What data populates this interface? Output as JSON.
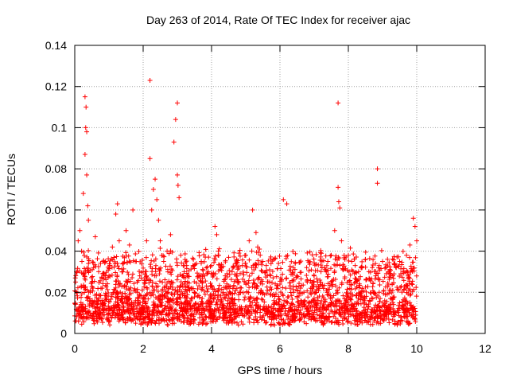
{
  "chart_data": {
    "type": "scatter",
    "title": "Day 263 of 2014, Rate Of TEC Index for receiver ajac",
    "xlabel": "GPS time / hours",
    "ylabel": "ROTI / TECUs",
    "xlim": [
      0,
      12
    ],
    "ylim": [
      0,
      0.14
    ],
    "x_ticks": [
      0,
      2,
      4,
      6,
      8,
      10,
      12
    ],
    "x_tick_labels": [
      "0",
      "2",
      "4",
      "6",
      "8",
      "10",
      "12"
    ],
    "y_ticks": [
      0,
      0.02,
      0.04,
      0.06,
      0.08,
      0.1,
      0.12,
      0.14
    ],
    "y_tick_labels": [
      "0",
      "0.02",
      "0.04",
      "0.06",
      "0.08",
      "0.1",
      "0.12",
      "0.14"
    ],
    "grid": true,
    "marker": "+",
    "color": "#ff0000",
    "series": [
      {
        "name": "ROTI",
        "x": [
          0.05,
          0.1,
          0.15,
          0.2,
          0.25,
          0.3,
          0.3,
          0.32,
          0.33,
          0.35,
          0.35,
          0.38,
          0.4,
          0.4,
          0.45,
          0.5,
          0.55,
          0.6,
          0.7,
          0.8,
          0.9,
          1.0,
          1.1,
          1.2,
          1.25,
          1.3,
          1.4,
          1.5,
          1.6,
          1.7,
          1.8,
          1.9,
          2.0,
          2.1,
          2.2,
          2.2,
          2.25,
          2.3,
          2.35,
          2.4,
          2.45,
          2.5,
          2.6,
          2.7,
          2.8,
          2.9,
          2.95,
          3.0,
          3.0,
          3.02,
          3.05,
          3.1,
          3.2,
          3.3,
          3.4,
          3.5,
          3.6,
          3.7,
          3.8,
          3.9,
          4.0,
          4.1,
          4.15,
          4.2,
          4.3,
          4.4,
          4.5,
          4.6,
          4.7,
          4.8,
          4.9,
          5.0,
          5.1,
          5.2,
          5.3,
          5.35,
          5.4,
          5.5,
          5.6,
          5.7,
          5.8,
          5.9,
          6.0,
          6.1,
          6.2,
          6.3,
          6.4,
          6.5,
          6.6,
          6.7,
          6.8,
          6.9,
          7.0,
          7.1,
          7.2,
          7.3,
          7.4,
          7.5,
          7.6,
          7.7,
          7.7,
          7.72,
          7.75,
          7.8,
          7.9,
          8.0,
          8.1,
          8.2,
          8.3,
          8.4,
          8.5,
          8.6,
          8.7,
          8.8,
          8.85,
          8.85,
          8.9,
          9.0,
          9.1,
          9.2,
          9.3,
          9.4,
          9.5,
          9.6,
          9.7,
          9.8,
          9.9,
          9.95,
          10.0
        ],
        "y": [
          0.03,
          0.045,
          0.05,
          0.04,
          0.068,
          0.087,
          0.115,
          0.1,
          0.11,
          0.098,
          0.077,
          0.062,
          0.055,
          0.034,
          0.02,
          0.025,
          0.032,
          0.047,
          0.03,
          0.022,
          0.035,
          0.028,
          0.042,
          0.058,
          0.063,
          0.045,
          0.03,
          0.05,
          0.043,
          0.06,
          0.035,
          0.028,
          0.03,
          0.045,
          0.123,
          0.085,
          0.06,
          0.07,
          0.075,
          0.065,
          0.055,
          0.045,
          0.035,
          0.04,
          0.048,
          0.093,
          0.104,
          0.112,
          0.077,
          0.072,
          0.066,
          0.038,
          0.03,
          0.025,
          0.022,
          0.02,
          0.027,
          0.035,
          0.028,
          0.03,
          0.033,
          0.052,
          0.048,
          0.04,
          0.032,
          0.028,
          0.037,
          0.03,
          0.034,
          0.039,
          0.033,
          0.038,
          0.045,
          0.06,
          0.049,
          0.042,
          0.041,
          0.035,
          0.033,
          0.025,
          0.027,
          0.022,
          0.024,
          0.065,
          0.063,
          0.022,
          0.02,
          0.018,
          0.022,
          0.02,
          0.025,
          0.022,
          0.028,
          0.025,
          0.03,
          0.032,
          0.035,
          0.038,
          0.05,
          0.112,
          0.071,
          0.064,
          0.061,
          0.045,
          0.036,
          0.038,
          0.035,
          0.033,
          0.03,
          0.032,
          0.036,
          0.03,
          0.032,
          0.028,
          0.08,
          0.073,
          0.033,
          0.035,
          0.032,
          0.03,
          0.028,
          0.032,
          0.035,
          0.03,
          0.038,
          0.043,
          0.056,
          0.052,
          0.045
        ]
      }
    ]
  }
}
